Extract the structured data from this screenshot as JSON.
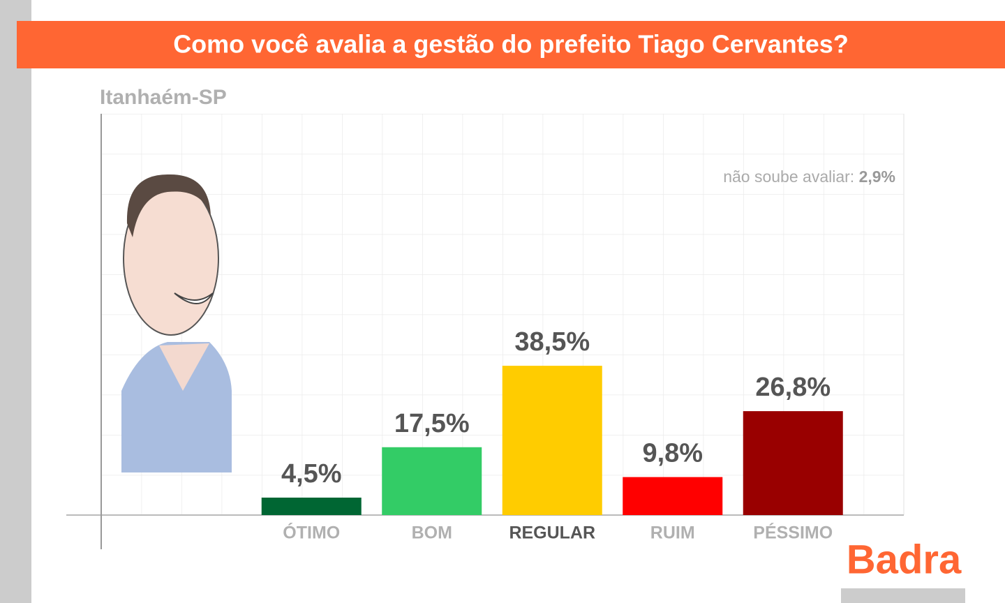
{
  "chart_data": {
    "type": "bar",
    "title": "Como você avalia a gestão do prefeito Tiago Cervantes?",
    "subtitle": "Itanhaém-SP",
    "annotation": {
      "text": "não soube avaliar:",
      "value_label": "2,9%"
    },
    "brand": "Badra",
    "categories": [
      "ÓTIMO",
      "BOM",
      "REGULAR",
      "RUIM",
      "PÉSSIMO"
    ],
    "values": [
      4.5,
      17.5,
      38.5,
      9.8,
      26.8
    ],
    "value_labels": [
      "4,5%",
      "17,5%",
      "38,5%",
      "9,8%",
      "26,8%"
    ],
    "colors": [
      "#006633",
      "#33cc66",
      "#ffcc00",
      "#ff0000",
      "#990000"
    ],
    "highlight_index": 2,
    "ylim": [
      0,
      103.5
    ]
  }
}
